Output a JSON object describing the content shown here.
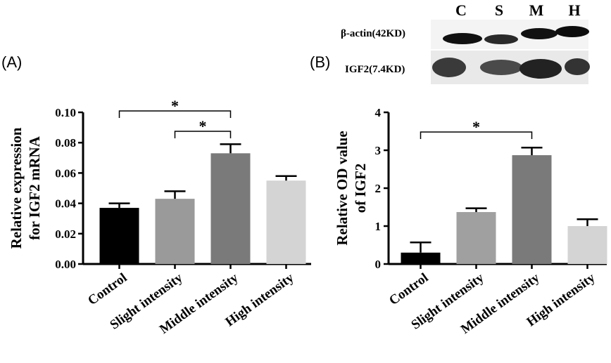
{
  "panels": {
    "a_label": "(A)",
    "b_label": "(B)"
  },
  "blot": {
    "lanes": [
      "C",
      "S",
      "M",
      "H"
    ],
    "rows": [
      "β-actin(42KD)",
      "IGF2(7.4KD)"
    ]
  },
  "chart_data": [
    {
      "type": "bar",
      "panel": "(A)",
      "title": "",
      "ylabel_lines": [
        "Relative expression",
        "for IGF2 mRNA"
      ],
      "categories": [
        "Control",
        "Slight intensity",
        "Middle intensity",
        "High  intensity"
      ],
      "values": [
        0.037,
        0.043,
        0.073,
        0.055
      ],
      "errors": [
        0.003,
        0.005,
        0.006,
        0.003
      ],
      "bar_colors": [
        "#000000",
        "#9a9a9a",
        "#7a7a7a",
        "#d4d4d4"
      ],
      "ylim": [
        0,
        0.1
      ],
      "yticks": [
        "0.00",
        "0.02",
        "0.04",
        "0.06",
        "0.08",
        "0.10"
      ],
      "significance": [
        {
          "from": 0,
          "to": 2,
          "label": "*"
        },
        {
          "from": 1,
          "to": 2,
          "label": "*"
        }
      ],
      "grid": false
    },
    {
      "type": "bar",
      "panel": "(B)",
      "title": "",
      "ylabel_lines": [
        "Relative OD value",
        "of IGF2"
      ],
      "categories": [
        "Control",
        "Slight intensity",
        "Middle intensity",
        "High  intensity"
      ],
      "values": [
        0.3,
        1.37,
        2.87,
        1.0
      ],
      "errors": [
        0.27,
        0.1,
        0.2,
        0.18
      ],
      "bar_colors": [
        "#000000",
        "#a0a0a0",
        "#7a7a7a",
        "#d4d4d4"
      ],
      "ylim": [
        0,
        4
      ],
      "yticks": [
        "0",
        "1",
        "2",
        "3",
        "4"
      ],
      "significance": [
        {
          "from": 0,
          "to": 2,
          "label": "*"
        }
      ],
      "grid": false
    }
  ]
}
